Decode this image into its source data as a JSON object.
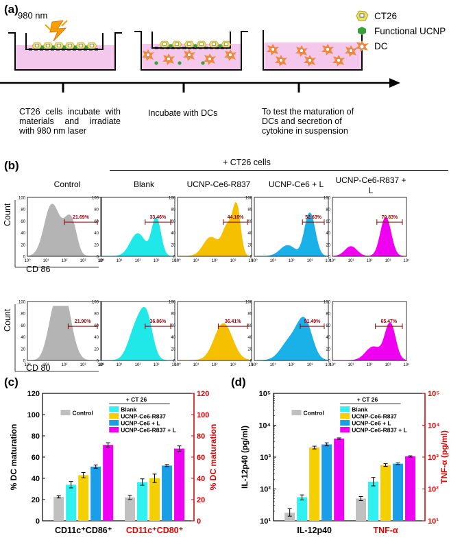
{
  "panel_a": {
    "letter": "(a)",
    "laser_label": "980 nm",
    "legend": [
      {
        "label": "CT26",
        "icon": "ct26-cell-icon"
      },
      {
        "label": "Functional UCNP",
        "icon": "ucnp-hexagon-icon"
      },
      {
        "label": "DC",
        "icon": "dendritic-cell-icon"
      }
    ],
    "steps": [
      "CT26 cells incubate with materials and irradiate with 980 nm laser",
      "Incubate with DCs",
      "To test the maturation of DCs and secretion of cytokine in suspension"
    ],
    "colors": {
      "medium": "#f4c8ec",
      "ct26": "#e8e060",
      "ucnp": "#3aa03a",
      "dc": "#f08a3a"
    }
  },
  "panel_b": {
    "letter": "(b)",
    "group_label": "+ CT26 cells",
    "column_titles": [
      "Control",
      "Blank",
      "UCNP-Ce6-R837",
      "UCNP-Ce6 + L",
      "UCNP-Ce6-R837 + L"
    ],
    "colors": [
      "#b4b4b4",
      "#20e8e8",
      "#f5c000",
      "#1ab0e8",
      "#f000f0"
    ],
    "y_axis_label": "Count",
    "y_ticks": [
      "100",
      "80",
      "60",
      "40",
      "20",
      "0"
    ],
    "x_ticks": [
      "10⁰",
      "10¹",
      "10²",
      "10³",
      "10⁴"
    ],
    "rows": [
      {
        "marker": "CD 86",
        "percents": [
          "21.69%",
          "33.46%",
          "44.16%",
          "52.63%",
          "70.83%"
        ]
      },
      {
        "marker": "CD 80",
        "percents": [
          "21.90%",
          "36.86%",
          "36.41%",
          "51.49%",
          "65.47%"
        ]
      }
    ]
  },
  "panel_c": {
    "letter": "(c)"
  },
  "panel_d": {
    "letter": "(d)"
  },
  "chart_data": [
    {
      "type": "bar",
      "panel": "c",
      "categories": [
        "CD11c⁺CD86⁺",
        "CD11c⁺CD80⁺"
      ],
      "category_colors": [
        "#000000",
        "#e00000"
      ],
      "ylabel": "% DC maturation",
      "ylabel_right": "% DC maturation",
      "ylim": [
        0,
        120
      ],
      "yticks": [
        "0",
        "20",
        "40",
        "60",
        "80",
        "100",
        "120"
      ],
      "group_label": "+ CT 26",
      "legend_position": "top-center",
      "series": [
        {
          "name": "Control",
          "color": "#c0c0c0",
          "values": [
            22.5,
            22
          ],
          "errors": [
            1,
            2
          ]
        },
        {
          "name": "Blank",
          "color": "#30f0f0",
          "values": [
            34,
            36.5
          ],
          "errors": [
            3,
            3
          ]
        },
        {
          "name": "UCNP-Ce6-R837",
          "color": "#f5d000",
          "values": [
            43,
            40
          ],
          "errors": [
            2.5,
            4
          ]
        },
        {
          "name": "UCNP-Ce6 + L",
          "color": "#1a9ee8",
          "values": [
            51,
            52
          ],
          "errors": [
            1.5,
            1
          ]
        },
        {
          "name": "UCNP-Ce6-R837 + L",
          "color": "#f000f0",
          "values": [
            71.5,
            68
          ],
          "errors": [
            2,
            2.5
          ]
        }
      ]
    },
    {
      "type": "bar",
      "panel": "d",
      "categories": [
        "IL-12p40",
        "TNF-α"
      ],
      "category_colors": [
        "#000000",
        "#e00000"
      ],
      "ylabel": "IL-12p40 (pg/ml)",
      "ylabel_right": "TNF-α (pg/ml)",
      "scale": "log",
      "ylim": [
        10,
        100000
      ],
      "yticks": [
        "10¹",
        "10²",
        "10³",
        "10⁴",
        "10⁵"
      ],
      "group_label": "+ CT 26",
      "legend_position": "top-center",
      "series": [
        {
          "name": "Control",
          "color": "#c0c0c0",
          "values": [
            18,
            50
          ],
          "errors_hi": [
            24,
            58
          ],
          "errors_lo": [
            14,
            43
          ]
        },
        {
          "name": "Blank",
          "color": "#30f0f0",
          "values": [
            55,
            170
          ],
          "errors_hi": [
            65,
            230
          ],
          "errors_lo": [
            45,
            125
          ]
        },
        {
          "name": "UCNP-Ce6-R837",
          "color": "#f5d000",
          "values": [
            2000,
            560
          ],
          "errors_hi": [
            2200,
            620
          ],
          "errors_lo": [
            1800,
            510
          ]
        },
        {
          "name": "UCNP-Ce6 + L",
          "color": "#1a9ee8",
          "values": [
            2500,
            620
          ],
          "errors_hi": [
            2800,
            660
          ],
          "errors_lo": [
            2250,
            580
          ]
        },
        {
          "name": "UCNP-Ce6-R837 + L",
          "color": "#f000f0",
          "values": [
            3800,
            1050
          ],
          "errors_hi": [
            4000,
            1100
          ],
          "errors_lo": [
            3600,
            1000
          ]
        }
      ]
    }
  ]
}
